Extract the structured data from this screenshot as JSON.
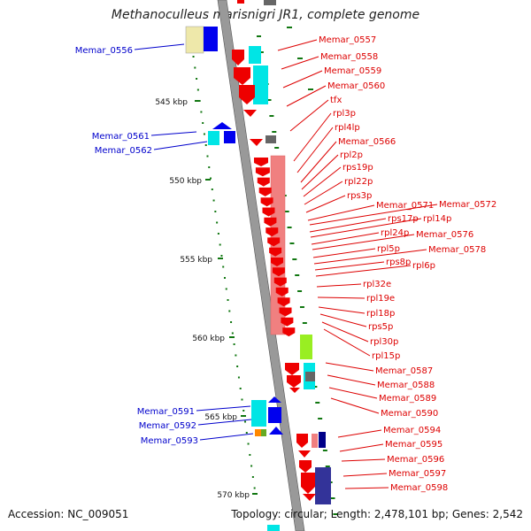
{
  "title": "Methanoculleus marisnigri JR1, complete genome",
  "footer": {
    "accession": "Accession: NC_009051",
    "summary": "Topology: circular; Length: 2,478,101 bp; Genes: 2,542"
  },
  "scale_ticks": [
    {
      "label": "545 kbp",
      "kbp": 545
    },
    {
      "label": "550 kbp",
      "kbp": 550
    },
    {
      "label": "555 kbp",
      "kbp": 555
    },
    {
      "label": "560 kbp",
      "kbp": 560
    },
    {
      "label": "565 kbp",
      "kbp": 565
    },
    {
      "label": "570 kbp",
      "kbp": 570
    }
  ],
  "left_labels": [
    "Memar_0556",
    "Memar_0561",
    "Memar_0562",
    "Memar_0591",
    "Memar_0592",
    "Memar_0593"
  ],
  "right_labels": [
    "Memar_0557",
    "Memar_0558",
    "Memar_0559",
    "Memar_0560",
    "tfx",
    "rpl3p",
    "rpl4lp",
    "Memar_0566",
    "rpl2p",
    "rps19p",
    "rpl22p",
    "rps3p",
    "Memar_0571",
    "Memar_0572",
    "rps17p",
    "rpl14p",
    "rpl24p",
    "Memar_0576",
    "rpl5p",
    "Memar_0578",
    "rps8p",
    "rpl6p",
    "rpl32e",
    "rpl19e",
    "rpl18p",
    "rps5p",
    "rpl30p",
    "rpl15p",
    "Memar_0587",
    "Memar_0588",
    "Memar_0589",
    "Memar_0590",
    "Memar_0594",
    "Memar_0595",
    "Memar_0596",
    "Memar_0597",
    "Memar_0598"
  ],
  "colors": {
    "forward_gene": "#ee0000",
    "reverse_gene": "#0000ee",
    "cog_cyan": "#00e5e5",
    "cog_salmon": "#f08080",
    "cog_green": "#99ee22",
    "cog_gray": "#666666",
    "cog_navy": "#333399",
    "cog_khaki": "#eee8aa",
    "backbone": "#999999",
    "left_label": "#0000cc",
    "right_label": "#dd0000",
    "tick": "#117711"
  }
}
